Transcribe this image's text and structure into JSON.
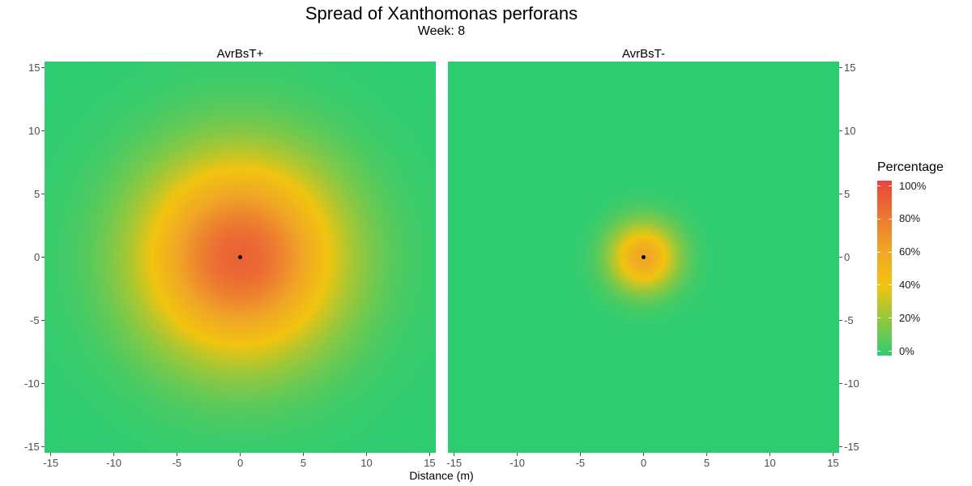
{
  "title": "Spread of Xanthomonas perforans",
  "subtitle": "Week: 8",
  "chart_data": {
    "type": "heatmap",
    "xlabel": "Distance (m)",
    "ylabel": "",
    "xlim": [
      -15.5,
      15.5
    ],
    "ylim": [
      -15.5,
      15.5
    ],
    "x_ticks": [
      "-15",
      "-10",
      "-5",
      "0",
      "5",
      "10",
      "15"
    ],
    "y_ticks": [
      "15",
      "10",
      "5",
      "0",
      "-5",
      "-10",
      "-15"
    ],
    "facets": [
      {
        "label": "AvrBsT+",
        "source_point": {
          "x": 0,
          "y": 0
        },
        "peak_percent": 88,
        "spread_sd_m": 5.6
      },
      {
        "label": "AvrBsT-",
        "source_point": {
          "x": 0,
          "y": 0
        },
        "peak_percent": 60,
        "spread_sd_m": 1.9
      }
    ],
    "legend": {
      "title": "Percentage",
      "position": "right",
      "labels": [
        "100%",
        "80%",
        "60%",
        "40%",
        "20%",
        "0%"
      ],
      "colors": [
        "#e8453c",
        "#f0a627",
        "#f1c40f",
        "#2ecc71"
      ]
    },
    "grid": false
  }
}
